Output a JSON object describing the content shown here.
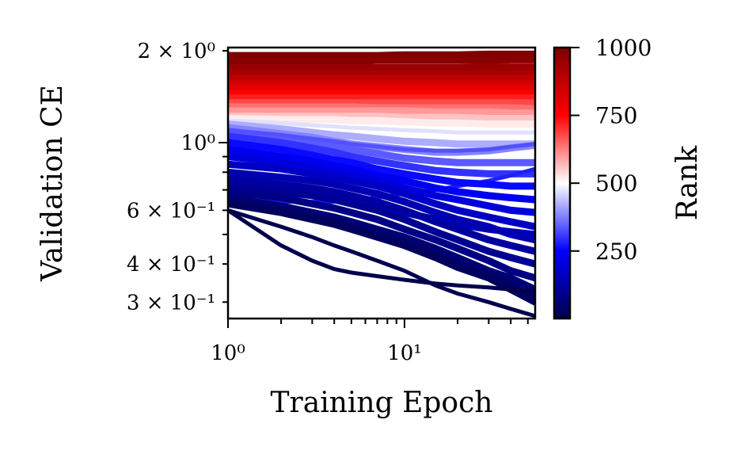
{
  "chart_data": {
    "type": "line",
    "xlabel": "Training Epoch",
    "ylabel": "Validation CE",
    "xscale": "log",
    "yscale": "log",
    "xlim": [
      1,
      55
    ],
    "ylim": [
      0.265,
      2.05
    ],
    "grid": false,
    "x_ticks": [
      {
        "value": 1,
        "label": "10⁰"
      },
      {
        "value": 10,
        "label": "10¹"
      }
    ],
    "y_ticks": [
      {
        "value": 2.0,
        "label": "2 × 10⁰"
      },
      {
        "value": 1.0,
        "label": "10⁰"
      },
      {
        "value": 0.6,
        "label": "6 × 10⁻¹"
      },
      {
        "value": 0.4,
        "label": "4 × 10⁻¹"
      },
      {
        "value": 0.3,
        "label": "3 × 10⁻¹"
      }
    ],
    "colorbar": {
      "label": "Rank",
      "colormap": "seismic",
      "colormap_colors": [
        "#00004c",
        "#0000ff",
        "#ffffff",
        "#ff0000",
        "#7f0000"
      ],
      "range": [
        1,
        1000
      ],
      "ticks": [
        250,
        500,
        750,
        1000
      ]
    },
    "epochs": [
      1,
      2,
      3,
      4,
      5,
      7,
      10,
      15,
      20,
      30,
      40,
      55
    ],
    "series": [
      {
        "rank": 1000,
        "values": [
          1.93,
          1.93,
          1.93,
          1.93,
          1.93,
          1.93,
          1.94,
          1.94,
          1.94,
          1.95,
          1.95,
          1.95
        ]
      },
      {
        "rank": 980,
        "values": [
          1.85,
          1.85,
          1.85,
          1.85,
          1.85,
          1.86,
          1.86,
          1.86,
          1.86,
          1.86,
          1.87,
          1.87
        ]
      },
      {
        "rank": 950,
        "values": [
          1.76,
          1.76,
          1.76,
          1.76,
          1.76,
          1.76,
          1.76,
          1.76,
          1.76,
          1.77,
          1.77,
          1.77
        ]
      },
      {
        "rank": 920,
        "values": [
          1.68,
          1.68,
          1.68,
          1.68,
          1.68,
          1.68,
          1.68,
          1.68,
          1.68,
          1.68,
          1.68,
          1.68
        ]
      },
      {
        "rank": 880,
        "values": [
          1.62,
          1.62,
          1.62,
          1.62,
          1.62,
          1.62,
          1.62,
          1.62,
          1.62,
          1.62,
          1.62,
          1.62
        ]
      },
      {
        "rank": 840,
        "values": [
          1.56,
          1.56,
          1.56,
          1.56,
          1.56,
          1.56,
          1.56,
          1.56,
          1.56,
          1.56,
          1.56,
          1.56
        ]
      },
      {
        "rank": 800,
        "values": [
          1.51,
          1.51,
          1.51,
          1.51,
          1.51,
          1.51,
          1.51,
          1.51,
          1.51,
          1.51,
          1.51,
          1.51
        ]
      },
      {
        "rank": 760,
        "values": [
          1.45,
          1.45,
          1.45,
          1.45,
          1.45,
          1.45,
          1.45,
          1.45,
          1.45,
          1.45,
          1.45,
          1.45
        ]
      },
      {
        "rank": 720,
        "values": [
          1.4,
          1.4,
          1.4,
          1.4,
          1.4,
          1.4,
          1.4,
          1.4,
          1.4,
          1.4,
          1.4,
          1.4
        ]
      },
      {
        "rank": 680,
        "values": [
          1.35,
          1.35,
          1.35,
          1.35,
          1.35,
          1.35,
          1.35,
          1.35,
          1.35,
          1.35,
          1.35,
          1.35
        ]
      },
      {
        "rank": 640,
        "values": [
          1.31,
          1.31,
          1.31,
          1.31,
          1.31,
          1.3,
          1.3,
          1.3,
          1.3,
          1.3,
          1.3,
          1.29
        ]
      },
      {
        "rank": 600,
        "values": [
          1.27,
          1.27,
          1.27,
          1.27,
          1.27,
          1.27,
          1.27,
          1.26,
          1.26,
          1.26,
          1.25,
          1.25
        ]
      },
      {
        "rank": 560,
        "values": [
          1.22,
          1.22,
          1.22,
          1.22,
          1.22,
          1.22,
          1.21,
          1.21,
          1.21,
          1.2,
          1.2,
          1.2
        ]
      },
      {
        "rank": 520,
        "values": [
          1.2,
          1.19,
          1.19,
          1.19,
          1.18,
          1.18,
          1.17,
          1.16,
          1.16,
          1.15,
          1.15,
          1.15
        ]
      },
      {
        "rank": 470,
        "values": [
          1.18,
          1.16,
          1.14,
          1.13,
          1.12,
          1.11,
          1.1,
          1.09,
          1.08,
          1.08,
          1.08,
          1.08
        ]
      },
      {
        "rank": 420,
        "values": [
          1.15,
          1.11,
          1.08,
          1.06,
          1.05,
          1.03,
          1.01,
          1.0,
          0.99,
          0.99,
          0.99,
          0.99
        ]
      },
      {
        "rank": 380,
        "values": [
          1.12,
          1.07,
          1.04,
          1.01,
          0.99,
          0.97,
          0.95,
          0.93,
          0.93,
          0.94,
          0.96,
          0.98
        ]
      },
      {
        "rank": 340,
        "values": [
          1.09,
          1.04,
          1.0,
          0.97,
          0.95,
          0.92,
          0.89,
          0.87,
          0.86,
          0.86,
          0.86,
          0.86
        ]
      },
      {
        "rank": 300,
        "values": [
          1.05,
          1.0,
          0.96,
          0.93,
          0.9,
          0.87,
          0.84,
          0.81,
          0.8,
          0.79,
          0.79,
          0.79
        ]
      },
      {
        "rank": 260,
        "values": [
          1.0,
          0.95,
          0.91,
          0.88,
          0.86,
          0.82,
          0.79,
          0.76,
          0.74,
          0.73,
          0.72,
          0.72
        ]
      },
      {
        "rank": 230,
        "values": [
          0.95,
          0.9,
          0.87,
          0.84,
          0.82,
          0.78,
          0.75,
          0.71,
          0.69,
          0.67,
          0.66,
          0.65
        ]
      },
      {
        "rank": 200,
        "values": [
          0.9,
          0.86,
          0.83,
          0.8,
          0.78,
          0.75,
          0.71,
          0.67,
          0.65,
          0.62,
          0.6,
          0.59
        ]
      },
      {
        "rank": 170,
        "values": [
          0.85,
          0.82,
          0.79,
          0.77,
          0.75,
          0.72,
          0.68,
          0.63,
          0.6,
          0.57,
          0.55,
          0.53
        ]
      },
      {
        "rank": 145,
        "values": [
          0.8,
          0.77,
          0.75,
          0.73,
          0.71,
          0.68,
          0.64,
          0.59,
          0.56,
          0.53,
          0.5,
          0.48
        ]
      },
      {
        "rank": 120,
        "values": [
          0.76,
          0.73,
          0.71,
          0.69,
          0.67,
          0.64,
          0.6,
          0.55,
          0.52,
          0.48,
          0.46,
          0.44
        ]
      },
      {
        "rank": 100,
        "values": [
          0.72,
          0.69,
          0.67,
          0.65,
          0.63,
          0.6,
          0.56,
          0.51,
          0.48,
          0.44,
          0.42,
          0.4
        ]
      },
      {
        "rank": 80,
        "values": [
          0.69,
          0.66,
          0.63,
          0.61,
          0.59,
          0.56,
          0.52,
          0.48,
          0.45,
          0.41,
          0.38,
          0.36
        ]
      },
      {
        "rank": 60,
        "values": [
          0.66,
          0.62,
          0.59,
          0.57,
          0.55,
          0.52,
          0.49,
          0.45,
          0.42,
          0.38,
          0.36,
          0.33
        ]
      },
      {
        "rank": 40,
        "values": [
          0.64,
          0.6,
          0.57,
          0.55,
          0.53,
          0.5,
          0.47,
          0.43,
          0.4,
          0.37,
          0.34,
          0.31
        ]
      },
      {
        "rank": 25,
        "values": [
          0.63,
          0.59,
          0.56,
          0.54,
          0.52,
          0.49,
          0.46,
          0.42,
          0.39,
          0.36,
          0.33,
          0.3
        ]
      },
      {
        "rank": 330,
        "values": [
          1.1,
          1.06,
          1.03,
          1.01,
          0.99,
          0.97,
          0.95,
          0.94,
          0.94,
          0.95,
          0.97,
          0.99
        ]
      },
      {
        "rank": 280,
        "values": [
          0.65,
          0.64,
          0.64,
          0.64,
          0.65,
          0.66,
          0.68,
          0.7,
          0.72,
          0.75,
          0.78,
          0.82
        ]
      },
      {
        "rank": 150,
        "values": [
          0.72,
          0.7,
          0.68,
          0.66,
          0.65,
          0.62,
          0.59,
          0.56,
          0.54,
          0.52,
          0.51,
          0.5
        ]
      },
      {
        "rank": 1,
        "values": [
          0.6,
          0.46,
          0.41,
          0.385,
          0.375,
          0.365,
          0.355,
          0.345,
          0.34,
          0.335,
          0.33,
          0.325
        ]
      },
      {
        "rank": 5,
        "values": [
          0.6,
          0.53,
          0.49,
          0.46,
          0.44,
          0.41,
          0.38,
          0.34,
          0.32,
          0.3,
          0.285,
          0.27
        ]
      }
    ]
  }
}
